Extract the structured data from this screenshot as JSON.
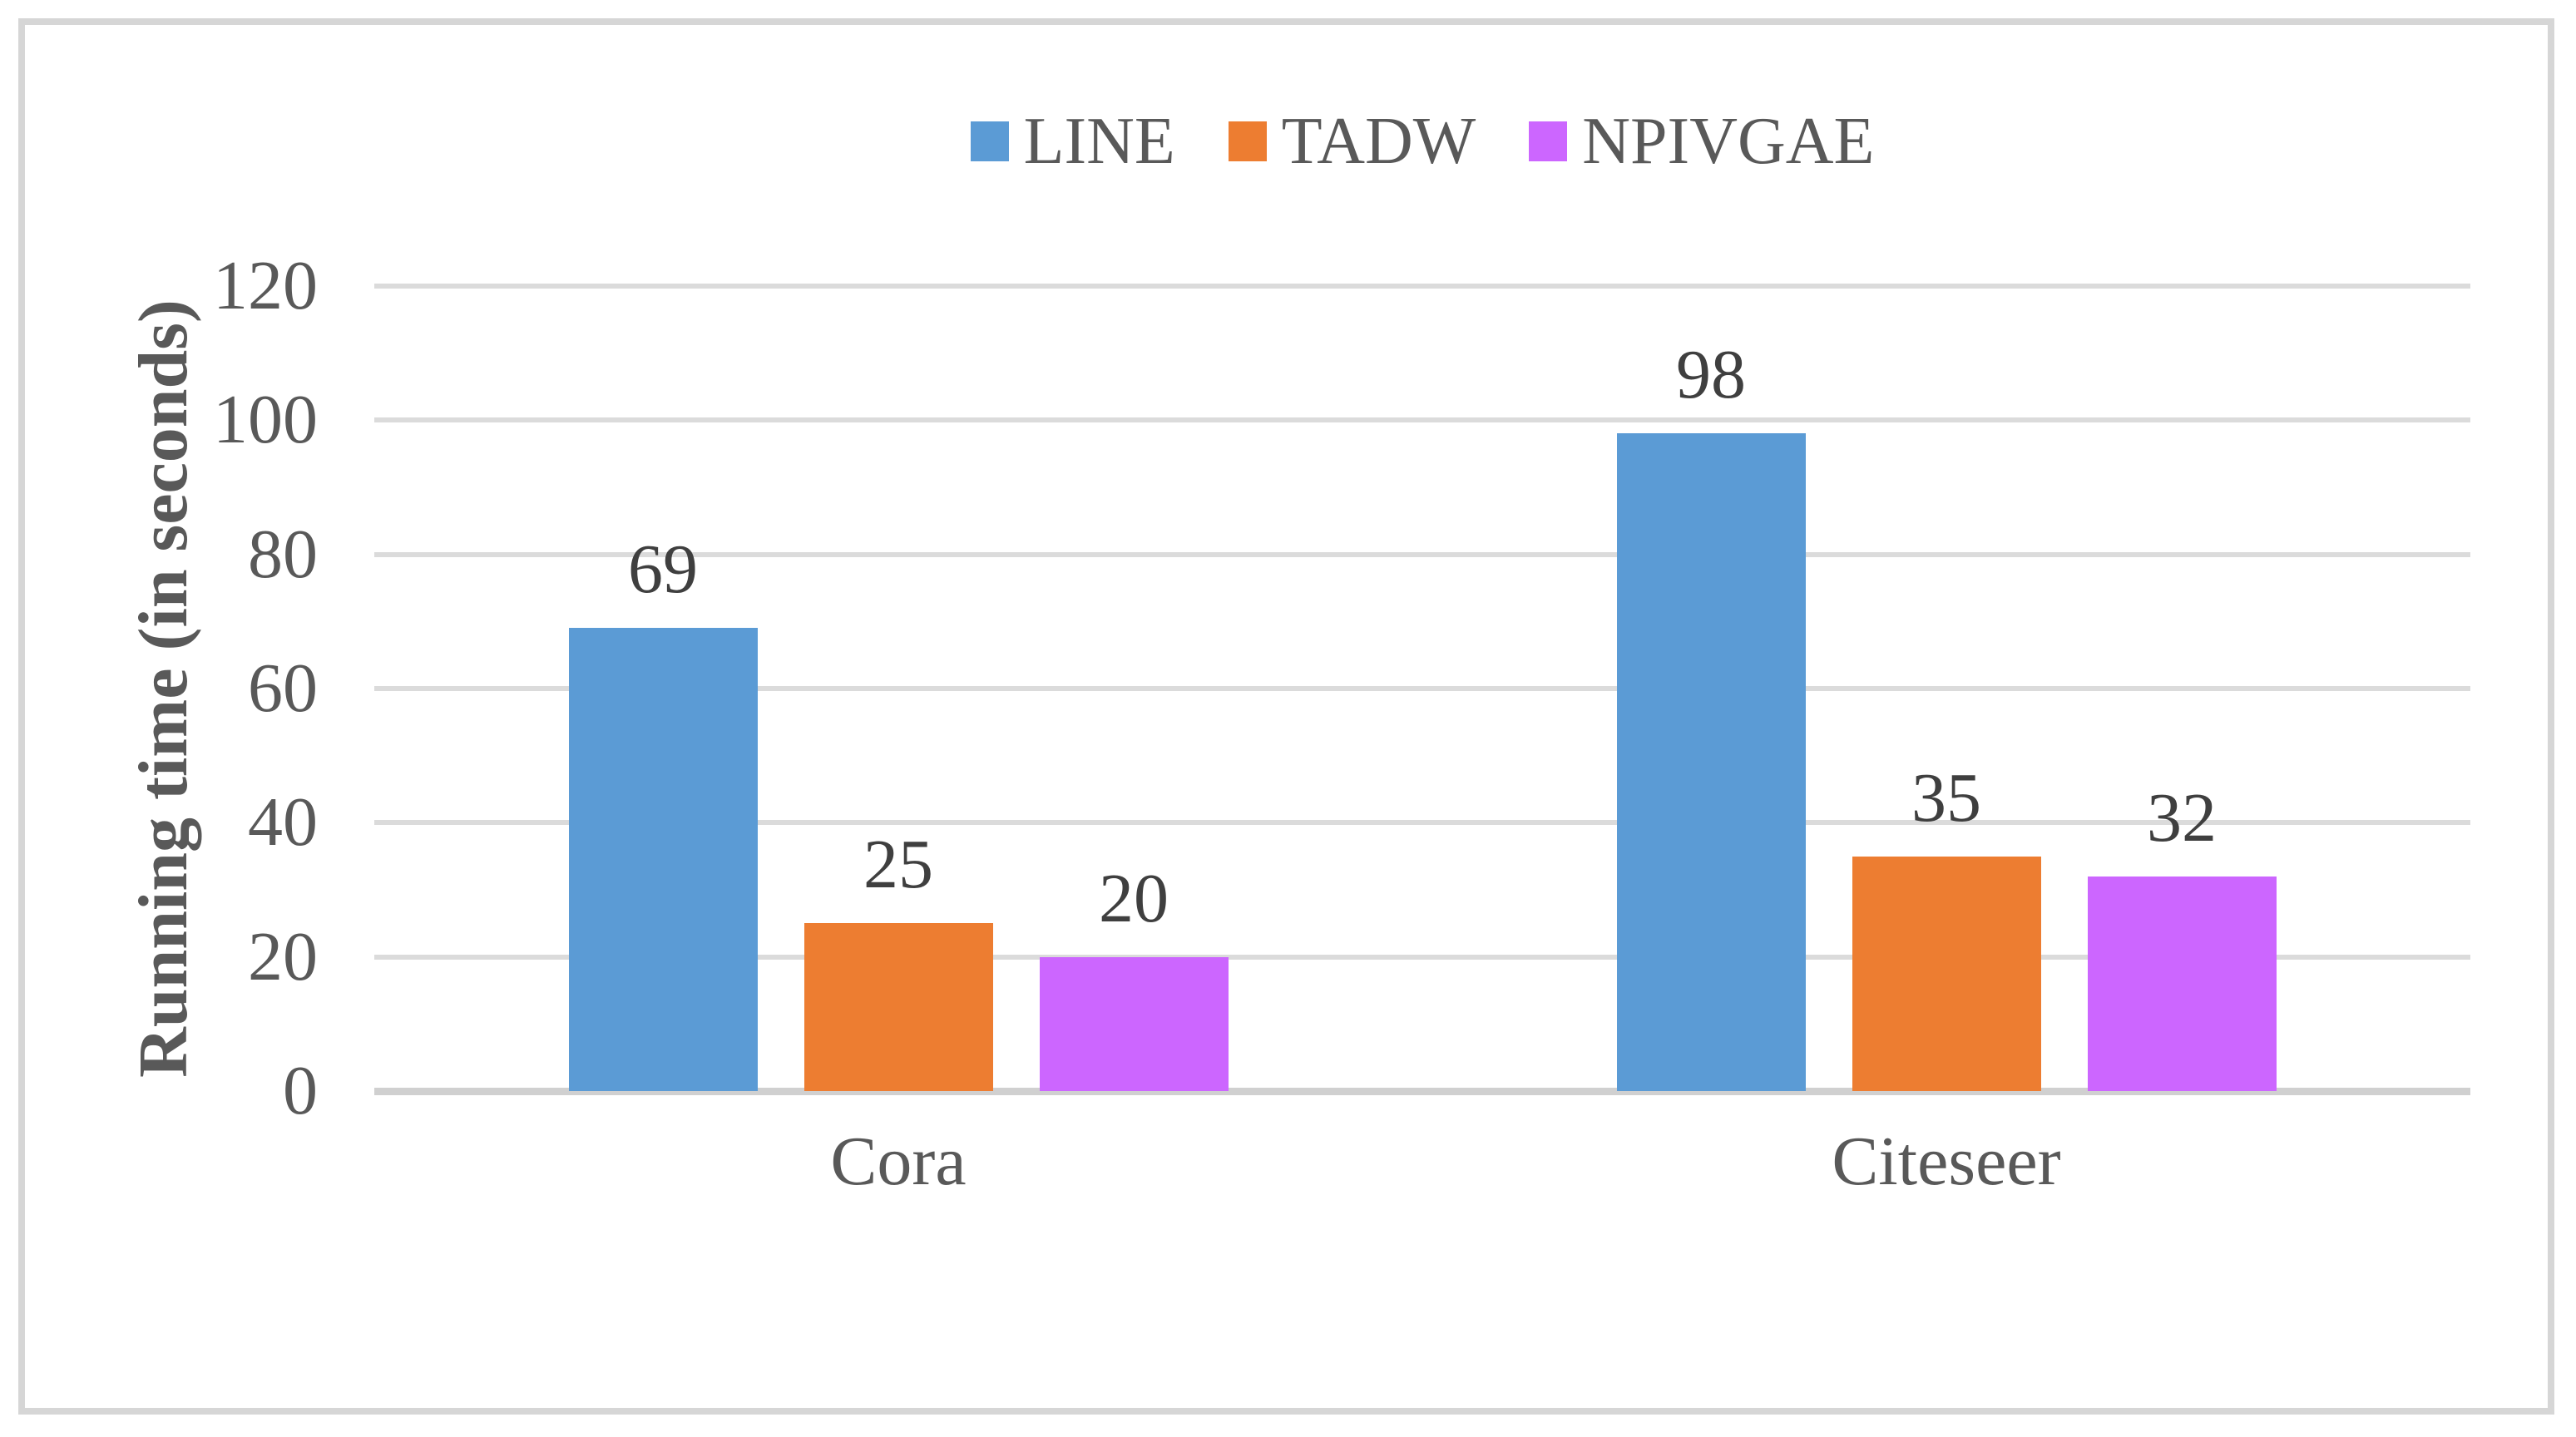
{
  "chart_data": {
    "type": "bar",
    "categories": [
      "Cora",
      "Citeseer"
    ],
    "series": [
      {
        "name": "LINE",
        "color": "#5B9BD5",
        "values": [
          69,
          98
        ]
      },
      {
        "name": "TADW",
        "color": "#ED7D31",
        "values": [
          25,
          35
        ]
      },
      {
        "name": "NPIVGAE",
        "color": "#CC66FF",
        "values": [
          20,
          32
        ]
      }
    ],
    "title": "",
    "xlabel": "",
    "ylabel": "Running time (in seconds)",
    "ylim": [
      0,
      120
    ],
    "yticks": [
      0,
      20,
      40,
      60,
      80,
      100,
      120
    ],
    "grid": true,
    "legend_position": "top-center",
    "bar_value_labels": true
  },
  "palette": {
    "background": "#FFFFFF",
    "frame_border": "#D6D6D6",
    "gridline": "#DBDBDB",
    "axis_line": "#D0D0D0",
    "tick_text": "#595959",
    "category_text": "#595959",
    "legend_text": "#595959",
    "value_label_text": "#3F3F3F",
    "axis_title_text": "#595959"
  }
}
